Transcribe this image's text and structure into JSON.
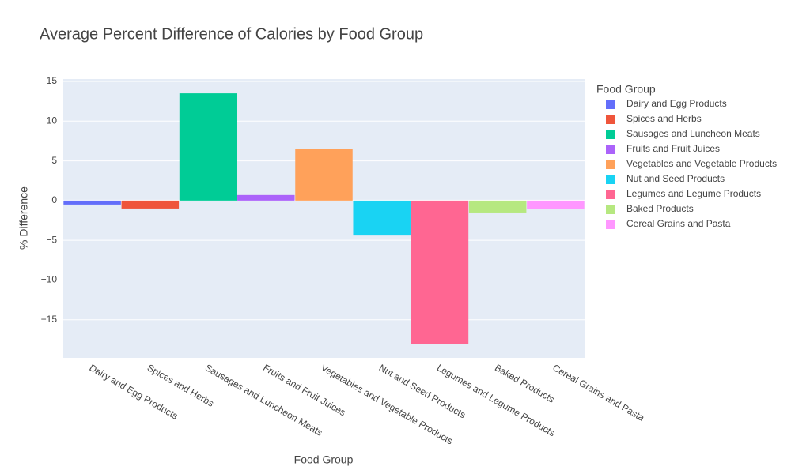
{
  "chart_data": {
    "type": "bar",
    "title": "Average Percent Difference of Calories by Food Group",
    "x_label": "Food Group",
    "y_label": "% Difference",
    "legend_title": "Food Group",
    "categories": [
      "Dairy and Egg Products",
      "Spices and Herbs",
      "Sausages and Luncheon Meats",
      "Fruits and Fruit Juices",
      "Vegetables and Vegetable Products",
      "Nut and Seed Products",
      "Legumes and Legume Products",
      "Baked Products",
      "Cereal Grains and Pasta"
    ],
    "values": [
      -0.5,
      -1.0,
      13.5,
      0.7,
      6.45,
      -4.4,
      -18.1,
      -1.5,
      -1.1
    ],
    "colors": [
      "#636efa",
      "#EF553B",
      "#00cc96",
      "#ab63fa",
      "#FFA15A",
      "#19d3f3",
      "#FF6692",
      "#B6E880",
      "#FF97FF"
    ],
    "ylim": [
      -19.8,
      15.3
    ],
    "yticks": [
      15,
      10,
      5,
      0,
      {
        "value": -5,
        "label": "−5"
      },
      {
        "value": -10,
        "label": "−10"
      },
      {
        "value": -15,
        "label": "−15"
      }
    ],
    "grid": true,
    "legend": "right"
  }
}
